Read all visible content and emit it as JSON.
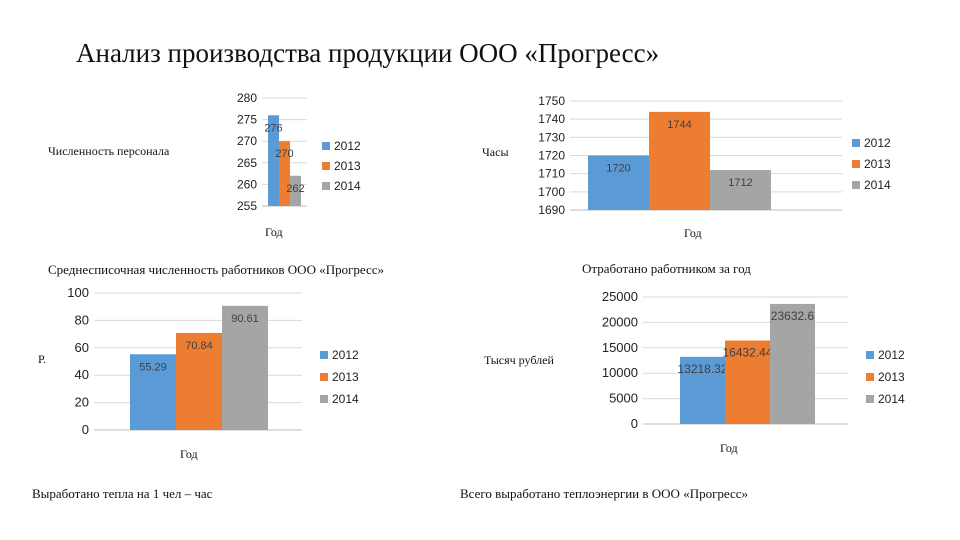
{
  "title": "Анализ производства продукции ООО «Прогресс»",
  "colors": {
    "2012": "#5b9bd5",
    "2013": "#ed7d31",
    "2014": "#a5a5a5"
  },
  "captions": {
    "c1": "Среднесписочная численность работников ООО «Прогресс»",
    "c2": "Отработано работником за год",
    "c3": "Выработано тепла на 1 чел – час",
    "c4": "Всего выработано теплоэнергии в ООО «Прогресс»"
  },
  "chart_data": [
    {
      "type": "bar",
      "ylabel": "Численность персонала",
      "xlabel": "Год",
      "ylim": [
        255,
        280
      ],
      "yticks": [
        "255",
        "260",
        "265",
        "270",
        "275",
        "280"
      ],
      "series": [
        {
          "name": "2012",
          "value": 276,
          "label": "276"
        },
        {
          "name": "2013",
          "value": 270,
          "label": "270"
        },
        {
          "name": "2014",
          "value": 262,
          "label": "262"
        }
      ],
      "legend": "right"
    },
    {
      "type": "bar",
      "ylabel": "Часы",
      "xlabel": "Год",
      "ylim": [
        1690,
        1750
      ],
      "yticks": [
        "1690",
        "1700",
        "1710",
        "1720",
        "1730",
        "1740",
        "1750"
      ],
      "series": [
        {
          "name": "2012",
          "value": 1720,
          "label": "1720"
        },
        {
          "name": "2013",
          "value": 1744,
          "label": "1744"
        },
        {
          "name": "2014",
          "value": 1712,
          "label": "1712"
        }
      ],
      "legend": "right"
    },
    {
      "type": "bar",
      "ylabel": "Р.",
      "xlabel": "Год",
      "ylim": [
        0,
        100
      ],
      "yticks": [
        "0",
        "20",
        "40",
        "60",
        "80",
        "100"
      ],
      "series": [
        {
          "name": "2012",
          "value": 55.29,
          "label": "55.29"
        },
        {
          "name": "2013",
          "value": 70.84,
          "label": "70.84"
        },
        {
          "name": "2014",
          "value": 90.61,
          "label": "90.61"
        }
      ],
      "legend": "right"
    },
    {
      "type": "bar",
      "ylabel": "Тысяч рублей",
      "xlabel": "Год",
      "ylim": [
        0,
        25000
      ],
      "yticks": [
        "0",
        "5000",
        "10000",
        "15000",
        "20000",
        "25000"
      ],
      "series": [
        {
          "name": "2012",
          "value": 13218.32,
          "label": "13218.32"
        },
        {
          "name": "2013",
          "value": 16432.44,
          "label": "16432.44"
        },
        {
          "name": "2014",
          "value": 23632.6,
          "label": "23632.6"
        }
      ],
      "legend": "right"
    }
  ]
}
